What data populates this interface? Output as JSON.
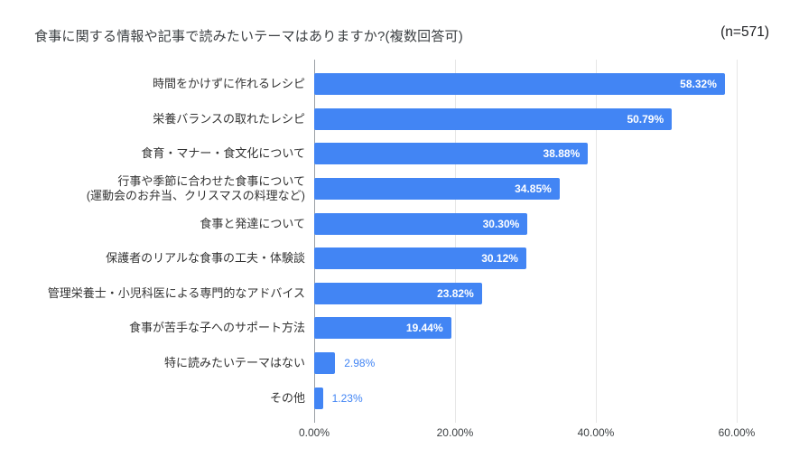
{
  "header": {
    "title": "食事に関する情報や記事で読みたいテーマはありますか?(複数回答可)",
    "n_label": "(n=571)"
  },
  "chart_data": {
    "type": "bar",
    "orientation": "horizontal",
    "title": "食事に関する情報や記事で読みたいテーマはありますか?(複数回答可)",
    "sample_size_label": "(n=571)",
    "categories": [
      "時間をかけずに作れるレシピ",
      "栄養バランスの取れたレシピ",
      "食育・マナー・食文化について",
      "行事や季節に合わせた食事について\n(運動会のお弁当、クリスマスの料理など)",
      "食事と発達について",
      "保護者のリアルな食事の工夫・体験談",
      "管理栄養士・小児科医による専門的なアドバイス",
      "食事が苦手な子へのサポート方法",
      "特に読みたいテーマはない",
      "その他"
    ],
    "values": [
      58.32,
      50.79,
      38.88,
      34.85,
      30.3,
      30.12,
      23.82,
      19.44,
      2.98,
      1.23
    ],
    "value_labels": [
      "58.32%",
      "50.79%",
      "38.88%",
      "34.85%",
      "30.30%",
      "30.12%",
      "23.82%",
      "19.44%",
      "2.98%",
      "1.23%"
    ],
    "x_ticks": [
      "0.00%",
      "20.00%",
      "40.00%",
      "60.00%"
    ],
    "x_tick_values": [
      0,
      20,
      40,
      60
    ],
    "xlim": [
      0,
      61.54
    ],
    "grid": "vertical",
    "legend": "none",
    "colors": {
      "bar": "#4285f4",
      "value_label_inside": "#ffffff",
      "value_label_outside": "#4285f4",
      "gridline": "#e6e6e6",
      "axis_line": "#9aa0a6",
      "title_text": "#3c4043",
      "category_text": "#333333",
      "tick_text": "#3c4043"
    },
    "value_label_inside_threshold": 10
  }
}
